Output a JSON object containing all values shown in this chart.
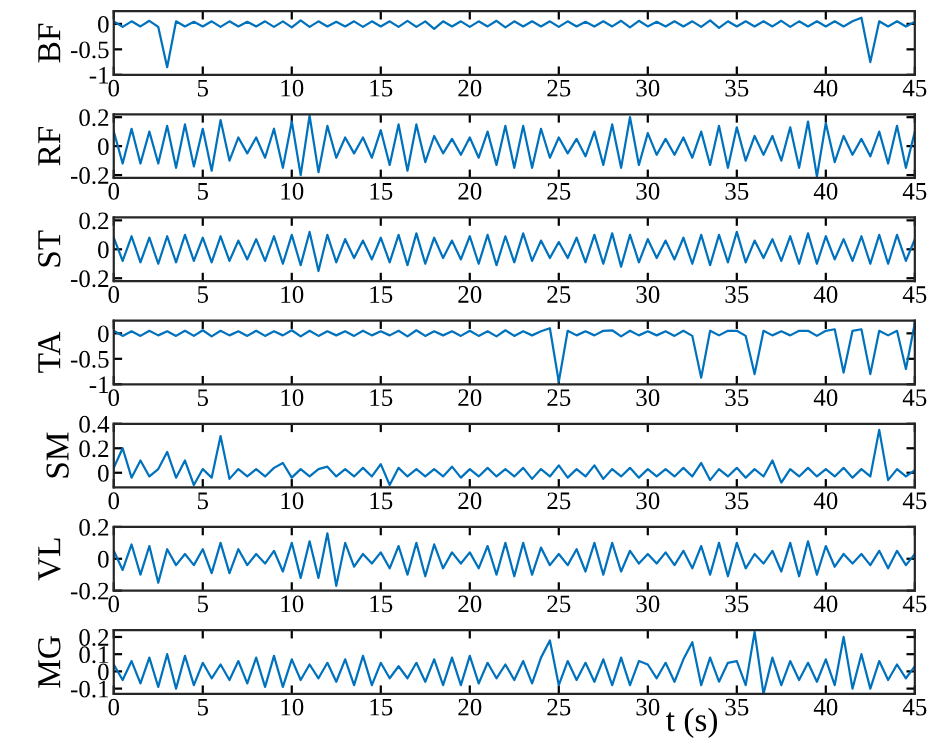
{
  "chart_data": [
    {
      "type": "line",
      "ylabel": "BF",
      "xlim": [
        0,
        45
      ],
      "xticks": [
        0,
        5,
        10,
        15,
        20,
        25,
        30,
        35,
        40,
        45
      ],
      "ylim": [
        -1,
        0.25
      ],
      "yticks": [
        -1,
        -0.5,
        0
      ],
      "x": [
        0,
        0.5,
        1,
        1.5,
        2,
        2.5,
        3,
        3.5,
        4,
        4.5,
        5,
        5.5,
        6,
        6.5,
        7,
        7.5,
        8,
        8.5,
        9,
        9.5,
        10,
        10.5,
        11,
        11.5,
        12,
        12.5,
        13,
        13.5,
        14,
        14.5,
        15,
        15.5,
        16,
        16.5,
        17,
        17.5,
        18,
        18.5,
        19,
        19.5,
        20,
        20.5,
        21,
        21.5,
        22,
        22.5,
        23,
        23.5,
        24,
        24.5,
        25,
        25.5,
        26,
        26.5,
        27,
        27.5,
        28,
        28.5,
        29,
        29.5,
        30,
        30.5,
        31,
        31.5,
        32,
        32.5,
        33,
        33.5,
        34,
        34.5,
        35,
        35.5,
        36,
        36.5,
        37,
        37.5,
        38,
        38.5,
        39,
        39.5,
        40,
        40.5,
        41,
        41.5,
        42,
        42.5,
        43,
        43.5,
        44,
        44.5,
        45
      ],
      "series": [
        {
          "color": "#0072bd",
          "values": [
            0.05,
            -0.06,
            0.05,
            -0.05,
            0.06,
            -0.06,
            -0.85,
            0.05,
            -0.05,
            0.04,
            -0.05,
            0.05,
            -0.06,
            0.05,
            -0.05,
            0.04,
            -0.05,
            0.05,
            -0.06,
            0.05,
            -0.07,
            0.07,
            -0.06,
            0.05,
            -0.05,
            0.04,
            -0.05,
            0.05,
            -0.06,
            0.05,
            -0.05,
            0.05,
            -0.06,
            0.06,
            -0.06,
            0.05,
            -0.1,
            0.05,
            -0.05,
            0.05,
            -0.06,
            0.05,
            -0.05,
            0.06,
            -0.07,
            0.05,
            -0.05,
            0.05,
            -0.05,
            0.05,
            -0.06,
            0.05,
            -0.05,
            0.04,
            -0.05,
            0.05,
            -0.05,
            0.06,
            -0.07,
            0.06,
            -0.05,
            0.04,
            -0.05,
            0.05,
            -0.05,
            0.05,
            -0.06,
            0.07,
            -0.08,
            0.05,
            -0.05,
            0.05,
            -0.05,
            0.05,
            -0.05,
            0.06,
            -0.06,
            0.05,
            -0.05,
            0.05,
            -0.05,
            0.05,
            -0.05,
            0.05,
            0.12,
            -0.75,
            0.05,
            -0.05,
            0.05,
            -0.05,
            0.04
          ]
        }
      ]
    },
    {
      "type": "line",
      "ylabel": "RF",
      "xlim": [
        0,
        45
      ],
      "xticks": [
        0,
        5,
        10,
        15,
        20,
        25,
        30,
        35,
        40,
        45
      ],
      "ylim": [
        -0.22,
        0.22
      ],
      "yticks": [
        -0.2,
        0,
        0.2
      ],
      "x": [
        0,
        0.5,
        1,
        1.5,
        2,
        2.5,
        3,
        3.5,
        4,
        4.5,
        5,
        5.5,
        6,
        6.5,
        7,
        7.5,
        8,
        8.5,
        9,
        9.5,
        10,
        10.5,
        11,
        11.5,
        12,
        12.5,
        13,
        13.5,
        14,
        14.5,
        15,
        15.5,
        16,
        16.5,
        17,
        17.5,
        18,
        18.5,
        19,
        19.5,
        20,
        20.5,
        21,
        21.5,
        22,
        22.5,
        23,
        23.5,
        24,
        24.5,
        25,
        25.5,
        26,
        26.5,
        27,
        27.5,
        28,
        28.5,
        29,
        29.5,
        30,
        30.5,
        31,
        31.5,
        32,
        32.5,
        33,
        33.5,
        34,
        34.5,
        35,
        35.5,
        36,
        36.5,
        37,
        37.5,
        38,
        38.5,
        39,
        39.5,
        40,
        40.5,
        41,
        41.5,
        42,
        42.5,
        43,
        43.5,
        44,
        44.5,
        45
      ],
      "series": [
        {
          "color": "#0072bd",
          "values": [
            0.1,
            -0.12,
            0.12,
            -0.12,
            0.1,
            -0.12,
            0.14,
            -0.15,
            0.15,
            -0.14,
            0.12,
            -0.17,
            0.18,
            -0.1,
            0.06,
            -0.05,
            0.06,
            -0.08,
            0.12,
            -0.15,
            0.17,
            -0.2,
            0.21,
            -0.18,
            0.14,
            -0.08,
            0.06,
            -0.05,
            0.06,
            -0.08,
            0.11,
            -0.13,
            0.15,
            -0.17,
            0.15,
            -0.11,
            0.07,
            -0.05,
            0.05,
            -0.06,
            0.06,
            -0.08,
            0.1,
            -0.13,
            0.14,
            -0.15,
            0.14,
            -0.15,
            0.12,
            -0.08,
            0.06,
            -0.05,
            0.05,
            -0.07,
            0.1,
            -0.13,
            0.15,
            -0.15,
            0.2,
            -0.13,
            0.09,
            -0.06,
            0.05,
            -0.06,
            0.06,
            -0.08,
            0.1,
            -0.13,
            0.14,
            -0.15,
            0.13,
            -0.1,
            0.07,
            -0.06,
            0.07,
            -0.1,
            0.13,
            -0.15,
            0.17,
            -0.21,
            0.16,
            -0.11,
            0.07,
            -0.06,
            0.05,
            -0.07,
            0.1,
            -0.12,
            0.14,
            -0.15,
            0.1
          ]
        }
      ]
    },
    {
      "type": "line",
      "ylabel": "ST",
      "xlim": [
        0,
        45
      ],
      "xticks": [
        0,
        5,
        10,
        15,
        20,
        25,
        30,
        35,
        40,
        45
      ],
      "ylim": [
        -0.22,
        0.22
      ],
      "yticks": [
        -0.2,
        0,
        0.2
      ],
      "x": [
        0,
        0.5,
        1,
        1.5,
        2,
        2.5,
        3,
        3.5,
        4,
        4.5,
        5,
        5.5,
        6,
        6.5,
        7,
        7.5,
        8,
        8.5,
        9,
        9.5,
        10,
        10.5,
        11,
        11.5,
        12,
        12.5,
        13,
        13.5,
        14,
        14.5,
        15,
        15.5,
        16,
        16.5,
        17,
        17.5,
        18,
        18.5,
        19,
        19.5,
        20,
        20.5,
        21,
        21.5,
        22,
        22.5,
        23,
        23.5,
        24,
        24.5,
        25,
        25.5,
        26,
        26.5,
        27,
        27.5,
        28,
        28.5,
        29,
        29.5,
        30,
        30.5,
        31,
        31.5,
        32,
        32.5,
        33,
        33.5,
        34,
        34.5,
        35,
        35.5,
        36,
        36.5,
        37,
        37.5,
        38,
        38.5,
        39,
        39.5,
        40,
        40.5,
        41,
        41.5,
        42,
        42.5,
        43,
        43.5,
        44,
        44.5,
        45
      ],
      "series": [
        {
          "color": "#0072bd",
          "values": [
            0.08,
            -0.08,
            0.09,
            -0.09,
            0.08,
            -0.1,
            0.09,
            -0.09,
            0.1,
            -0.08,
            0.08,
            -0.09,
            0.09,
            -0.08,
            0.06,
            -0.07,
            0.07,
            -0.08,
            0.09,
            -0.1,
            0.1,
            -0.11,
            0.12,
            -0.15,
            0.1,
            -0.09,
            0.07,
            -0.06,
            0.06,
            -0.07,
            0.08,
            -0.09,
            0.1,
            -0.11,
            0.11,
            -0.1,
            0.08,
            -0.06,
            0.06,
            -0.07,
            0.09,
            -0.1,
            0.1,
            -0.11,
            0.09,
            -0.09,
            0.11,
            -0.08,
            0.06,
            -0.06,
            0.05,
            -0.06,
            0.08,
            -0.09,
            0.1,
            -0.1,
            0.11,
            -0.12,
            0.1,
            -0.09,
            0.07,
            -0.06,
            0.06,
            -0.07,
            0.08,
            -0.1,
            0.1,
            -0.11,
            0.1,
            -0.09,
            0.12,
            -0.09,
            0.06,
            -0.06,
            0.07,
            -0.08,
            0.09,
            -0.1,
            0.11,
            -0.1,
            0.09,
            -0.07,
            0.07,
            -0.08,
            0.09,
            -0.1,
            0.1,
            -0.1,
            0.1,
            -0.08,
            0.07
          ]
        }
      ]
    },
    {
      "type": "line",
      "ylabel": "TA",
      "xlim": [
        0,
        45
      ],
      "xticks": [
        0,
        5,
        10,
        15,
        20,
        25,
        30,
        35,
        40,
        45
      ],
      "ylim": [
        -1,
        0.25
      ],
      "yticks": [
        -1,
        -0.5,
        0
      ],
      "x": [
        0,
        0.5,
        1,
        1.5,
        2,
        2.5,
        3,
        3.5,
        4,
        4.5,
        5,
        5.5,
        6,
        6.5,
        7,
        7.5,
        8,
        8.5,
        9,
        9.5,
        10,
        10.5,
        11,
        11.5,
        12,
        12.5,
        13,
        13.5,
        14,
        14.5,
        15,
        15.5,
        16,
        16.5,
        17,
        17.5,
        18,
        18.5,
        19,
        19.5,
        20,
        20.5,
        21,
        21.5,
        22,
        22.5,
        23,
        23.5,
        24,
        24.5,
        25,
        25.5,
        26,
        26.5,
        27,
        27.5,
        28,
        28.5,
        29,
        29.5,
        30,
        30.5,
        31,
        31.5,
        32,
        32.5,
        33,
        33.5,
        34,
        34.5,
        35,
        35.5,
        36,
        36.5,
        37,
        37.5,
        38,
        38.5,
        39,
        39.5,
        40,
        40.5,
        41,
        41.5,
        42,
        42.5,
        43,
        43.5,
        44,
        44.5,
        45
      ],
      "series": [
        {
          "color": "#0072bd",
          "values": [
            0.05,
            -0.05,
            0.04,
            -0.05,
            0.05,
            -0.04,
            0.04,
            -0.05,
            0.05,
            -0.05,
            0.06,
            -0.06,
            0.05,
            -0.04,
            0.04,
            -0.05,
            0.05,
            -0.05,
            0.04,
            -0.04,
            0.06,
            -0.06,
            0.05,
            -0.05,
            0.04,
            -0.04,
            0.04,
            -0.05,
            0.05,
            -0.04,
            0.04,
            -0.04,
            0.05,
            -0.06,
            0.06,
            -0.05,
            0.04,
            -0.04,
            0.04,
            -0.05,
            0.05,
            -0.05,
            0.04,
            -0.06,
            0.06,
            -0.05,
            0.04,
            -0.04,
            0.04,
            0.1,
            -0.95,
            0.05,
            -0.04,
            0.04,
            -0.04,
            0.05,
            0.06,
            -0.06,
            0.05,
            -0.04,
            0.04,
            -0.04,
            0.04,
            -0.05,
            0.05,
            -0.05,
            -0.87,
            0.05,
            -0.04,
            0.05,
            0.05,
            -0.05,
            -0.8,
            0.05,
            -0.04,
            0.04,
            -0.04,
            0.05,
            0.05,
            -0.05,
            0.05,
            0.08,
            -0.77,
            0.05,
            0.08,
            -0.8,
            0.05,
            -0.04,
            0.05,
            -0.7,
            0.2
          ]
        }
      ]
    },
    {
      "type": "line",
      "ylabel": "SM",
      "xlim": [
        0,
        45
      ],
      "xticks": [
        0,
        5,
        10,
        15,
        20,
        25,
        30,
        35,
        40,
        45
      ],
      "ylim": [
        -0.12,
        0.4
      ],
      "yticks": [
        0,
        0.2,
        0.4
      ],
      "x": [
        0,
        0.5,
        1,
        1.5,
        2,
        2.5,
        3,
        3.5,
        4,
        4.5,
        5,
        5.5,
        6,
        6.5,
        7,
        7.5,
        8,
        8.5,
        9,
        9.5,
        10,
        10.5,
        11,
        11.5,
        12,
        12.5,
        13,
        13.5,
        14,
        14.5,
        15,
        15.5,
        16,
        16.5,
        17,
        17.5,
        18,
        18.5,
        19,
        19.5,
        20,
        20.5,
        21,
        21.5,
        22,
        22.5,
        23,
        23.5,
        24,
        24.5,
        25,
        25.5,
        26,
        26.5,
        27,
        27.5,
        28,
        28.5,
        29,
        29.5,
        30,
        30.5,
        31,
        31.5,
        32,
        32.5,
        33,
        33.5,
        34,
        34.5,
        35,
        35.5,
        36,
        36.5,
        37,
        37.5,
        38,
        38.5,
        39,
        39.5,
        40,
        40.5,
        41,
        41.5,
        42,
        42.5,
        43,
        43.5,
        44,
        44.5,
        45
      ],
      "series": [
        {
          "color": "#0072bd",
          "values": [
            0.04,
            0.2,
            -0.04,
            0.1,
            -0.03,
            0.03,
            0.17,
            -0.04,
            0.1,
            -0.1,
            0.03,
            -0.04,
            0.3,
            -0.05,
            0.03,
            -0.03,
            0.03,
            -0.03,
            0.04,
            0.08,
            -0.04,
            0.03,
            -0.03,
            0.03,
            0.05,
            -0.03,
            0.03,
            -0.03,
            0.04,
            -0.03,
            0.07,
            -0.1,
            0.04,
            -0.03,
            0.03,
            -0.03,
            0.03,
            -0.03,
            0.05,
            -0.04,
            0.03,
            -0.03,
            0.04,
            -0.03,
            0.03,
            -0.03,
            0.04,
            -0.05,
            0.03,
            -0.03,
            0.06,
            -0.04,
            0.03,
            -0.03,
            0.06,
            -0.05,
            0.03,
            -0.03,
            0.04,
            -0.04,
            0.03,
            -0.03,
            0.03,
            -0.03,
            0.04,
            -0.03,
            0.08,
            -0.06,
            0.03,
            -0.03,
            0.04,
            -0.04,
            0.03,
            -0.03,
            0.1,
            -0.08,
            0.03,
            -0.03,
            0.04,
            -0.03,
            0.03,
            -0.03,
            0.04,
            -0.04,
            0.03,
            -0.03,
            0.35,
            -0.06,
            0.03,
            -0.03,
            0.02
          ]
        }
      ]
    },
    {
      "type": "line",
      "ylabel": "VL",
      "xlim": [
        0,
        45
      ],
      "xticks": [
        0,
        5,
        10,
        15,
        20,
        25,
        30,
        35,
        40,
        45
      ],
      "ylim": [
        -0.2,
        0.2
      ],
      "yticks": [
        -0.2,
        0,
        0.2
      ],
      "x": [
        0,
        0.5,
        1,
        1.5,
        2,
        2.5,
        3,
        3.5,
        4,
        4.5,
        5,
        5.5,
        6,
        6.5,
        7,
        7.5,
        8,
        8.5,
        9,
        9.5,
        10,
        10.5,
        11,
        11.5,
        12,
        12.5,
        13,
        13.5,
        14,
        14.5,
        15,
        15.5,
        16,
        16.5,
        17,
        17.5,
        18,
        18.5,
        19,
        19.5,
        20,
        20.5,
        21,
        21.5,
        22,
        22.5,
        23,
        23.5,
        24,
        24.5,
        25,
        25.5,
        26,
        26.5,
        27,
        27.5,
        28,
        28.5,
        29,
        29.5,
        30,
        30.5,
        31,
        31.5,
        32,
        32.5,
        33,
        33.5,
        34,
        34.5,
        35,
        35.5,
        36,
        36.5,
        37,
        37.5,
        38,
        38.5,
        39,
        39.5,
        40,
        40.5,
        41,
        41.5,
        42,
        42.5,
        43,
        43.5,
        44,
        44.5,
        45
      ],
      "series": [
        {
          "color": "#0072bd",
          "values": [
            0.05,
            -0.07,
            0.09,
            -0.1,
            0.08,
            -0.15,
            0.06,
            -0.04,
            0.03,
            -0.04,
            0.06,
            -0.09,
            0.1,
            -0.09,
            0.06,
            -0.04,
            0.03,
            -0.03,
            0.05,
            -0.08,
            0.1,
            -0.12,
            0.11,
            -0.12,
            0.16,
            -0.17,
            0.1,
            -0.05,
            0.03,
            -0.03,
            0.04,
            -0.06,
            0.08,
            -0.1,
            0.1,
            -0.11,
            0.09,
            -0.06,
            0.04,
            -0.03,
            0.04,
            -0.06,
            0.08,
            -0.1,
            0.1,
            -0.11,
            0.1,
            -0.1,
            0.07,
            -0.04,
            0.03,
            -0.04,
            0.06,
            -0.08,
            0.1,
            -0.1,
            0.1,
            -0.08,
            0.05,
            -0.03,
            0.03,
            -0.03,
            0.04,
            -0.04,
            0.05,
            -0.06,
            0.08,
            -0.1,
            0.1,
            -0.11,
            0.1,
            -0.06,
            0.03,
            -0.03,
            0.05,
            -0.08,
            0.1,
            -0.11,
            0.11,
            -0.1,
            0.08,
            -0.05,
            0.03,
            -0.03,
            0.03,
            -0.04,
            0.05,
            -0.06,
            0.05,
            -0.04,
            0.03
          ]
        }
      ]
    },
    {
      "type": "line",
      "ylabel": "MG",
      "xlabel": "t (s)",
      "xlim": [
        0,
        45
      ],
      "xticks": [
        0,
        5,
        10,
        15,
        20,
        25,
        30,
        35,
        40,
        45
      ],
      "ylim": [
        -0.13,
        0.24
      ],
      "yticks": [
        -0.1,
        0,
        0.1,
        0.2
      ],
      "x": [
        0,
        0.5,
        1,
        1.5,
        2,
        2.5,
        3,
        3.5,
        4,
        4.5,
        5,
        5.5,
        6,
        6.5,
        7,
        7.5,
        8,
        8.5,
        9,
        9.5,
        10,
        10.5,
        11,
        11.5,
        12,
        12.5,
        13,
        13.5,
        14,
        14.5,
        15,
        15.5,
        16,
        16.5,
        17,
        17.5,
        18,
        18.5,
        19,
        19.5,
        20,
        20.5,
        21,
        21.5,
        22,
        22.5,
        23,
        23.5,
        24,
        24.5,
        25,
        25.5,
        26,
        26.5,
        27,
        27.5,
        28,
        28.5,
        29,
        29.5,
        30,
        30.5,
        31,
        31.5,
        32,
        32.5,
        33,
        33.5,
        34,
        34.5,
        35,
        35.5,
        36,
        36.5,
        37,
        37.5,
        38,
        38.5,
        39,
        39.5,
        40,
        40.5,
        41,
        41.5,
        42,
        42.5,
        43,
        43.5,
        44,
        44.5,
        45
      ],
      "series": [
        {
          "color": "#0072bd",
          "values": [
            0.04,
            -0.05,
            0.06,
            -0.07,
            0.08,
            -0.09,
            0.1,
            -0.1,
            0.09,
            -0.08,
            0.05,
            -0.04,
            0.04,
            -0.05,
            0.06,
            -0.07,
            0.08,
            -0.09,
            0.09,
            -0.09,
            0.07,
            -0.05,
            0.04,
            -0.04,
            0.05,
            -0.06,
            0.07,
            -0.08,
            0.09,
            -0.08,
            0.05,
            -0.04,
            0.03,
            -0.04,
            0.05,
            -0.06,
            0.07,
            -0.08,
            0.08,
            -0.08,
            0.09,
            -0.07,
            0.05,
            -0.04,
            0.04,
            -0.05,
            0.06,
            -0.07,
            0.08,
            0.18,
            -0.08,
            0.06,
            -0.05,
            0.05,
            -0.06,
            0.07,
            -0.08,
            0.08,
            -0.08,
            0.06,
            0.04,
            -0.04,
            0.05,
            -0.06,
            0.07,
            0.17,
            -0.08,
            0.08,
            -0.06,
            0.05,
            0.06,
            -0.08,
            0.23,
            -0.13,
            0.08,
            -0.08,
            0.06,
            -0.05,
            0.05,
            -0.06,
            0.07,
            -0.08,
            0.2,
            -0.1,
            0.1,
            -0.1,
            0.06,
            -0.05,
            0.04,
            -0.04,
            0.03
          ]
        }
      ]
    }
  ]
}
